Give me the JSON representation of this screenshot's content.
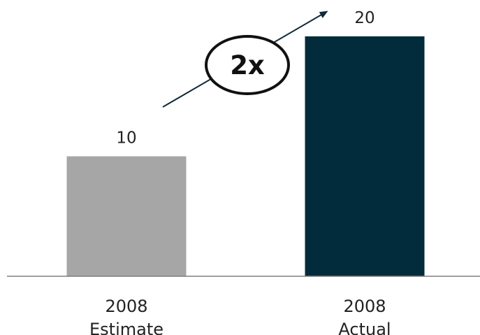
{
  "chart_data": {
    "type": "bar",
    "categories": [
      [
        "2008",
        "Estimate"
      ],
      [
        "2008",
        "Actual"
      ]
    ],
    "values": [
      10,
      20
    ],
    "value_labels": [
      "10",
      "20"
    ],
    "title": "",
    "xlabel": "",
    "ylabel": "",
    "ylim": [
      0,
      20
    ],
    "grid": false,
    "legend": "none",
    "annotation": {
      "text": "2x",
      "shape": "ellipse",
      "arrow": "upward arrow from first bar to second bar"
    },
    "colors": {
      "bars": [
        "#a6a6a6",
        "#022b3b"
      ],
      "axis": "#7f7f7f",
      "arrow": "#0f2a38",
      "text": "#222222"
    }
  }
}
